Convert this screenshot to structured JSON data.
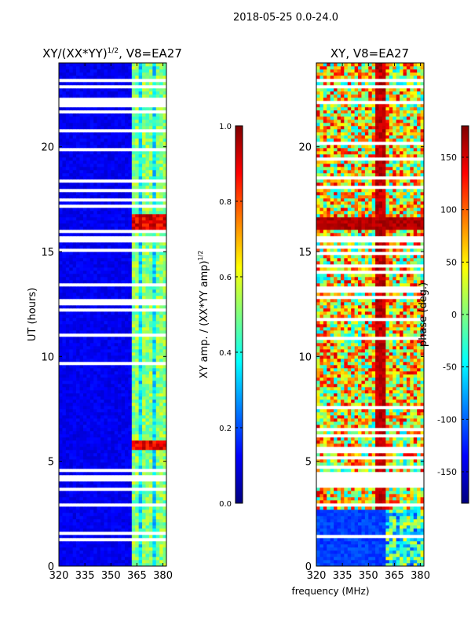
{
  "suptitle": "2018-05-25 0.0-24.0",
  "xlabel_shared": "frequency (MHz)",
  "colors": {
    "jet": [
      "#00007f",
      "#0000ff",
      "#007fff",
      "#00ffff",
      "#7fff7f",
      "#ffff00",
      "#ff7f00",
      "#ff0000",
      "#7f0000"
    ],
    "gap": "#ffffff",
    "axis": "#000000"
  },
  "chart_data": [
    {
      "type": "heatmap",
      "name": "amplitude-panel",
      "title": "XY/(XX*YY)",
      "title_sup": "1/2",
      "title_suffix": ", V8=EA27",
      "xlabel": "",
      "ylabel": "UT (hours)",
      "xlim": [
        320,
        382
      ],
      "ylim": [
        0,
        24
      ],
      "x_ticks": [
        320,
        335,
        350,
        365,
        380
      ],
      "y_ticks": [
        0,
        5,
        10,
        15,
        20
      ],
      "colorbar": {
        "label": "XY amp. / (XX*YY amp)",
        "label_sup": "1/2",
        "range": [
          0.0,
          1.0
        ],
        "ticks": [
          "0.0",
          "0.2",
          "0.4",
          "0.6",
          "0.8",
          "1.0"
        ]
      },
      "data_description": "low amplitude (~0.1) below 362 MHz; elevated (~0.3-0.5) in channels 362-382 MHz; saturated bursts (~0.9) near 16.0-16.8 h and 5.6-5.9 h"
    },
    {
      "type": "heatmap",
      "name": "phase-panel",
      "title": "XY, V8=EA27",
      "xlabel": "frequency (MHz)",
      "ylabel": "",
      "xlim": [
        320,
        382
      ],
      "ylim": [
        0,
        24
      ],
      "x_ticks": [
        320,
        335,
        350,
        365,
        380
      ],
      "y_ticks": [
        0,
        5,
        10,
        15,
        20
      ],
      "colorbar": {
        "label": "phase (deg.)",
        "range": [
          -180,
          180
        ],
        "ticks": [
          "-150",
          "-100",
          "-50",
          "0",
          "50",
          "100",
          "150"
        ]
      },
      "data_description": "phase near -120 deg from 0-2.7 h; mixed -60 to +180 deg with a red band near 355-360 MHz above 2.7 h"
    }
  ]
}
